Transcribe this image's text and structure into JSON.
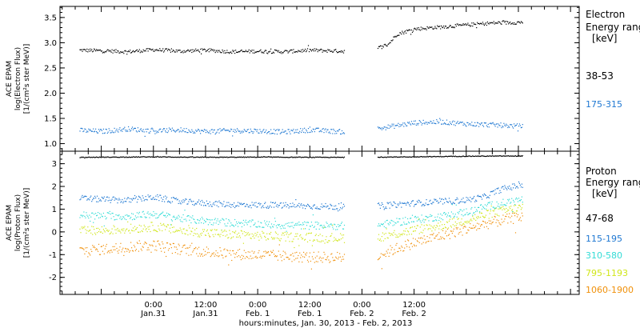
{
  "chart_data": [
    {
      "type": "scatter",
      "panel": "electron",
      "ylabel_lines": [
        "ACE EPAM",
        "log(Electron Flux)",
        "[1/(cm²s ster MeV)]"
      ],
      "ylim": [
        0.85,
        3.72
      ],
      "yticks": [
        1.0,
        1.5,
        2.0,
        2.5,
        3.0,
        3.5
      ],
      "yticklabels": [
        "1.0",
        "1.5",
        "2.0",
        "2.5",
        "3.0",
        "3.5"
      ],
      "legend_title_lines": [
        "Electron",
        "Energy ranges",
        "[keV]"
      ],
      "data_gap_hours": [
        44.0,
        51.5
      ],
      "series": [
        {
          "name": "38-53",
          "color": "#000000",
          "x": [
            -17,
            -12,
            -6,
            0,
            6,
            12,
            18,
            24,
            30,
            36,
            44,
            51.5,
            54,
            56,
            60,
            66,
            72,
            78,
            84,
            85
          ],
          "y": [
            2.86,
            2.85,
            2.83,
            2.87,
            2.84,
            2.86,
            2.83,
            2.84,
            2.83,
            2.86,
            2.84,
            2.9,
            2.98,
            3.18,
            3.28,
            3.32,
            3.36,
            3.4,
            3.41,
            3.42
          ]
        },
        {
          "name": "175-315",
          "color": "#1f78d2",
          "x": [
            -17,
            -12,
            -6,
            0,
            6,
            12,
            18,
            24,
            30,
            36,
            44,
            51.5,
            54,
            60,
            66,
            72,
            78,
            85
          ],
          "y": [
            1.27,
            1.25,
            1.3,
            1.26,
            1.28,
            1.25,
            1.27,
            1.26,
            1.24,
            1.28,
            1.24,
            1.3,
            1.34,
            1.42,
            1.44,
            1.4,
            1.38,
            1.35
          ]
        }
      ]
    },
    {
      "type": "scatter",
      "panel": "proton",
      "ylabel_lines": [
        "ACE EPAM",
        "log(Proton Flux)",
        "[1/(cm²s ster MeV)]"
      ],
      "ylim": [
        -2.75,
        3.55
      ],
      "yticks": [
        -2,
        -1,
        0,
        1,
        2,
        3
      ],
      "yticklabels": [
        "-2",
        "-1",
        "0",
        "1",
        "2",
        "3"
      ],
      "legend_title_lines": [
        "Proton",
        "Energy ranges",
        "[keV]"
      ],
      "data_gap_hours": [
        44.0,
        51.5
      ],
      "series": [
        {
          "name": "47-68",
          "color": "#000000",
          "x": [
            -17,
            0,
            12,
            24,
            36,
            44,
            51.5,
            60,
            72,
            85
          ],
          "y": [
            3.3,
            3.32,
            3.3,
            3.31,
            3.3,
            3.3,
            3.31,
            3.32,
            3.35,
            3.36
          ]
        },
        {
          "name": "115-195",
          "color": "#1f78d2",
          "x": [
            -17,
            -12,
            -6,
            0,
            6,
            12,
            18,
            24,
            30,
            36,
            44,
            51.5,
            56,
            60,
            66,
            72,
            76,
            80,
            85
          ],
          "y": [
            1.5,
            1.45,
            1.4,
            1.55,
            1.35,
            1.28,
            1.22,
            1.2,
            1.18,
            1.15,
            1.12,
            1.15,
            1.22,
            1.28,
            1.35,
            1.42,
            1.55,
            1.9,
            2.1
          ]
        },
        {
          "name": "310-580",
          "color": "#33dcd6",
          "x": [
            -17,
            -12,
            -6,
            0,
            6,
            12,
            18,
            24,
            30,
            36,
            44,
            51.5,
            56,
            60,
            66,
            72,
            78,
            85
          ],
          "y": [
            0.75,
            0.72,
            0.7,
            0.8,
            0.62,
            0.5,
            0.42,
            0.36,
            0.32,
            0.3,
            0.28,
            0.3,
            0.45,
            0.55,
            0.7,
            0.9,
            1.2,
            1.45
          ]
        },
        {
          "name": "795-1193",
          "color": "#d0e619",
          "x": [
            -17,
            -12,
            -6,
            0,
            6,
            12,
            18,
            24,
            30,
            36,
            44,
            51.5,
            56,
            60,
            66,
            72,
            78,
            85
          ],
          "y": [
            0.05,
            0.08,
            0.15,
            0.25,
            0.08,
            -0.02,
            -0.1,
            -0.15,
            -0.2,
            -0.22,
            -0.25,
            -0.22,
            -0.05,
            0.1,
            0.3,
            0.55,
            0.85,
            1.1
          ]
        },
        {
          "name": "1060-1900",
          "color": "#f0900a",
          "x": [
            -17,
            -12,
            -6,
            0,
            6,
            12,
            18,
            24,
            30,
            36,
            44,
            51.5,
            56,
            60,
            66,
            72,
            78,
            85
          ],
          "y": [
            -0.8,
            -0.75,
            -0.65,
            -0.55,
            -0.75,
            -0.85,
            -0.95,
            -1.0,
            -1.05,
            -1.1,
            -1.1,
            -1.05,
            -0.7,
            -0.45,
            -0.15,
            0.15,
            0.45,
            0.7
          ]
        }
      ]
    }
  ],
  "x_axis": {
    "xlim": [
      -21.5,
      98
    ],
    "ticks": [
      {
        "hour": 0,
        "time": "0:00",
        "date": "Jan.31"
      },
      {
        "hour": 12,
        "time": "12:00",
        "date": "Jan.31"
      },
      {
        "hour": 24,
        "time": "0:00",
        "date": "Feb. 1"
      },
      {
        "hour": 36,
        "time": "12:00",
        "date": "Feb. 1"
      },
      {
        "hour": 48,
        "time": "0:00",
        "date": "Feb. 2"
      },
      {
        "hour": 60,
        "time": "12:00",
        "date": "Feb. 2"
      }
    ],
    "minor_step_hours": 3,
    "label": "hours:minutes, Jan. 30, 2013 - Feb. 2, 2013"
  }
}
